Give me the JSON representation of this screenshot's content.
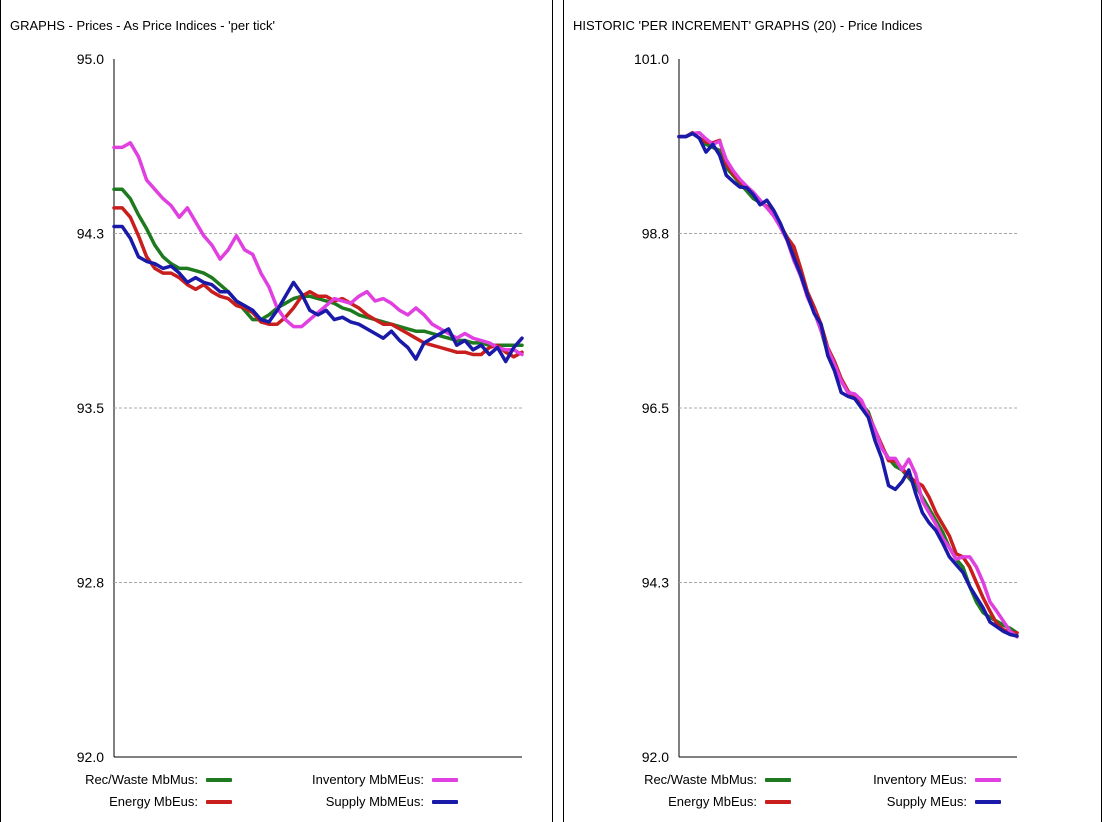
{
  "colors": {
    "recwaste": "#1e7a1e",
    "energy": "#c81e1e",
    "inventory": "#e040e0",
    "supply": "#1a1aa8",
    "grid": "#a8a8a8"
  },
  "chart_data": [
    {
      "type": "line",
      "title": "GRAPHS - Prices - As Price Indices - 'per tick'",
      "xlabel": "",
      "ylabel": "",
      "ylim": [
        92.0,
        95.0
      ],
      "yticks": [
        "95.0",
        "94.3",
        "93.5",
        "92.8",
        "92.0"
      ],
      "ytick_values": [
        95.0,
        94.25,
        93.5,
        92.75,
        92.0
      ],
      "grid": true,
      "legend_position": "bottom",
      "x": [
        0,
        1,
        2,
        3,
        4,
        5,
        6,
        7,
        8,
        9,
        10,
        11,
        12,
        13,
        14,
        15,
        16,
        17,
        18,
        19,
        20,
        21,
        22,
        23,
        24,
        25,
        26,
        27,
        28,
        29,
        30,
        31,
        32,
        33,
        34,
        35,
        36,
        37,
        38,
        39,
        40,
        41,
        42,
        43,
        44,
        45,
        46,
        47,
        48,
        49,
        50
      ],
      "series": [
        {
          "name": "Rec/Waste MbMus:",
          "color_key": "recwaste",
          "values": [
            94.44,
            94.44,
            94.4,
            94.33,
            94.27,
            94.2,
            94.15,
            94.12,
            94.1,
            94.1,
            94.09,
            94.08,
            94.06,
            94.03,
            94.0,
            93.96,
            93.92,
            93.88,
            93.88,
            93.9,
            93.93,
            93.95,
            93.97,
            93.98,
            93.98,
            93.97,
            93.96,
            93.95,
            93.93,
            93.92,
            93.9,
            93.89,
            93.88,
            93.87,
            93.86,
            93.85,
            93.84,
            93.83,
            93.83,
            93.82,
            93.81,
            93.8,
            93.79,
            93.79,
            93.78,
            93.78,
            93.77,
            93.77,
            93.77,
            93.77,
            93.77
          ]
        },
        {
          "name": "Energy MbEus:",
          "color_key": "energy",
          "values": [
            94.36,
            94.36,
            94.32,
            94.24,
            94.15,
            94.1,
            94.08,
            94.08,
            94.06,
            94.03,
            94.01,
            94.03,
            94.0,
            93.98,
            93.97,
            93.94,
            93.93,
            93.91,
            93.87,
            93.86,
            93.86,
            93.89,
            93.93,
            93.98,
            94.0,
            93.98,
            93.98,
            93.96,
            93.97,
            93.95,
            93.93,
            93.9,
            93.88,
            93.86,
            93.86,
            93.84,
            93.82,
            93.8,
            93.78,
            93.77,
            93.76,
            93.75,
            93.74,
            93.74,
            93.73,
            93.73,
            93.76,
            93.77,
            93.74,
            93.72,
            93.74
          ]
        },
        {
          "name": "Inventory MbMEus:",
          "color_key": "inventory",
          "values": [
            94.62,
            94.62,
            94.64,
            94.58,
            94.48,
            94.44,
            94.4,
            94.37,
            94.32,
            94.36,
            94.3,
            94.24,
            94.2,
            94.14,
            94.18,
            94.24,
            94.18,
            94.16,
            94.08,
            94.02,
            93.93,
            93.88,
            93.85,
            93.85,
            93.88,
            93.91,
            93.94,
            93.97,
            93.96,
            93.95,
            93.98,
            94.0,
            93.96,
            93.97,
            93.95,
            93.92,
            93.9,
            93.93,
            93.9,
            93.86,
            93.84,
            93.82,
            93.8,
            93.82,
            93.8,
            93.79,
            93.78,
            93.76,
            93.75,
            93.75,
            93.73
          ]
        },
        {
          "name": "Supply MbMEus:",
          "color_key": "supply",
          "values": [
            94.28,
            94.28,
            94.23,
            94.15,
            94.13,
            94.12,
            94.1,
            94.11,
            94.08,
            94.04,
            94.06,
            94.04,
            94.03,
            94.0,
            94.0,
            93.96,
            93.94,
            93.92,
            93.88,
            93.87,
            93.92,
            93.98,
            94.04,
            93.99,
            93.92,
            93.9,
            93.92,
            93.88,
            93.89,
            93.87,
            93.86,
            93.84,
            93.82,
            93.8,
            93.83,
            93.79,
            93.76,
            93.71,
            93.78,
            93.8,
            93.82,
            93.84,
            93.77,
            93.79,
            93.75,
            93.77,
            93.73,
            93.76,
            93.7,
            93.76,
            93.8
          ]
        }
      ]
    },
    {
      "type": "line",
      "title": "HISTORIC 'PER INCREMENT' GRAPHS (20) - Price Indices",
      "xlabel": "",
      "ylabel": "",
      "ylim": [
        92.0,
        101.0
      ],
      "yticks": [
        "101.0",
        "98.8",
        "96.5",
        "94.3",
        "92.0"
      ],
      "ytick_values": [
        101.0,
        98.75,
        96.5,
        94.25,
        92.0
      ],
      "grid": true,
      "legend_position": "bottom",
      "x": [
        0,
        1,
        2,
        3,
        4,
        5,
        6,
        7,
        8,
        9,
        10,
        11,
        12,
        13,
        14,
        15,
        16,
        17,
        18,
        19,
        20,
        21,
        22,
        23,
        24,
        25,
        26,
        27,
        28,
        29,
        30,
        31,
        32,
        33,
        34,
        35,
        36,
        37,
        38,
        39,
        40,
        41,
        42,
        43,
        44,
        45,
        46,
        47,
        48,
        49,
        50
      ],
      "series": [
        {
          "name": "Rec/Waste MbMus:",
          "color_key": "recwaste",
          "values": [
            100.0,
            100.0,
            100.05,
            99.98,
            99.9,
            99.86,
            99.82,
            99.6,
            99.5,
            99.4,
            99.3,
            99.2,
            99.15,
            99.1,
            99.0,
            98.85,
            98.7,
            98.45,
            98.2,
            97.95,
            97.75,
            97.5,
            97.2,
            97.0,
            96.85,
            96.7,
            96.65,
            96.55,
            96.45,
            96.2,
            96.0,
            95.85,
            95.75,
            95.7,
            95.6,
            95.5,
            95.35,
            95.2,
            95.05,
            94.9,
            94.7,
            94.55,
            94.45,
            94.2,
            94.0,
            93.86,
            93.8,
            93.75,
            93.7,
            93.66,
            93.6
          ]
        },
        {
          "name": "Energy MbEus:",
          "color_key": "energy",
          "values": [
            100.0,
            100.0,
            100.05,
            99.98,
            99.93,
            99.92,
            99.95,
            99.65,
            99.52,
            99.42,
            99.34,
            99.25,
            99.15,
            99.1,
            98.98,
            98.85,
            98.7,
            98.58,
            98.3,
            98.0,
            97.8,
            97.58,
            97.28,
            97.1,
            96.88,
            96.72,
            96.62,
            96.55,
            96.42,
            96.22,
            96.02,
            95.82,
            95.82,
            95.72,
            95.62,
            95.55,
            95.5,
            95.35,
            95.15,
            95.0,
            94.85,
            94.62,
            94.58,
            94.45,
            94.25,
            94.05,
            93.88,
            93.72,
            93.64,
            93.61,
            93.6
          ]
        },
        {
          "name": "Inventory MEus:",
          "color_key": "inventory",
          "values": [
            100.0,
            100.0,
            100.04,
            100.05,
            99.97,
            99.9,
            99.94,
            99.7,
            99.56,
            99.45,
            99.36,
            99.28,
            99.18,
            99.08,
            98.98,
            98.83,
            98.66,
            98.4,
            98.2,
            97.93,
            97.74,
            97.5,
            97.26,
            97.06,
            96.85,
            96.7,
            96.68,
            96.6,
            96.4,
            96.22,
            95.98,
            95.85,
            95.85,
            95.7,
            95.84,
            95.65,
            95.3,
            95.15,
            95.0,
            94.82,
            94.7,
            94.55,
            94.58,
            94.58,
            94.45,
            94.25,
            94.0,
            93.88,
            93.75,
            93.62,
            93.55
          ]
        },
        {
          "name": "Supply MEus:",
          "color_key": "supply",
          "values": [
            100.0,
            100.0,
            100.04,
            99.98,
            99.8,
            99.9,
            99.76,
            99.5,
            99.42,
            99.35,
            99.34,
            99.25,
            99.12,
            99.18,
            99.05,
            98.88,
            98.67,
            98.44,
            98.22,
            97.96,
            97.72,
            97.58,
            97.18,
            96.98,
            96.7,
            96.65,
            96.62,
            96.5,
            96.38,
            96.08,
            95.85,
            95.5,
            95.45,
            95.55,
            95.7,
            95.4,
            95.15,
            95.02,
            94.92,
            94.76,
            94.58,
            94.48,
            94.38,
            94.2,
            94.06,
            93.92,
            93.74,
            93.68,
            93.62,
            93.58,
            93.56
          ]
        }
      ]
    }
  ]
}
